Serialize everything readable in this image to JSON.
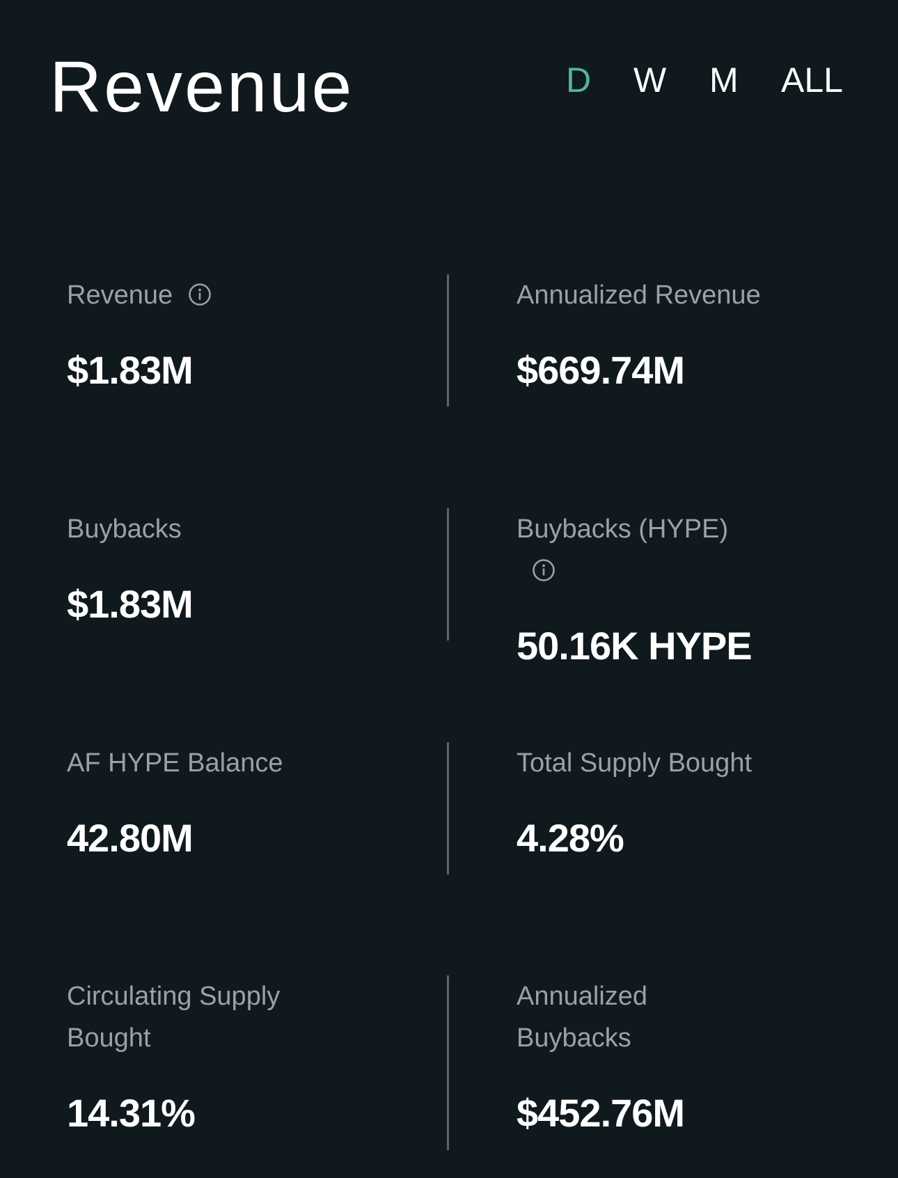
{
  "header": {
    "title": "Revenue",
    "tabs": [
      {
        "label": "D",
        "selected": true
      },
      {
        "label": "W",
        "selected": false
      },
      {
        "label": "M",
        "selected": false
      },
      {
        "label": "ALL",
        "selected": false
      }
    ]
  },
  "metrics": [
    {
      "label": "Revenue",
      "value": "$1.83M",
      "info": true
    },
    {
      "label": "Annualized Revenue",
      "value": "$669.74M",
      "info": false
    },
    {
      "label": "Buybacks",
      "value": "$1.83M",
      "info": false
    },
    {
      "label": "Buybacks (HYPE)",
      "value": "50.16K HYPE",
      "info": true
    },
    {
      "label": "AF HYPE Balance",
      "value": "42.80M",
      "info": false
    },
    {
      "label": "Total Supply Bought",
      "value": "4.28%",
      "info": false
    },
    {
      "label": "Circulating Supply Bought",
      "value": "14.31%",
      "info": false
    },
    {
      "label": "Annualized Buybacks",
      "value": "$452.76M",
      "info": false
    }
  ]
}
